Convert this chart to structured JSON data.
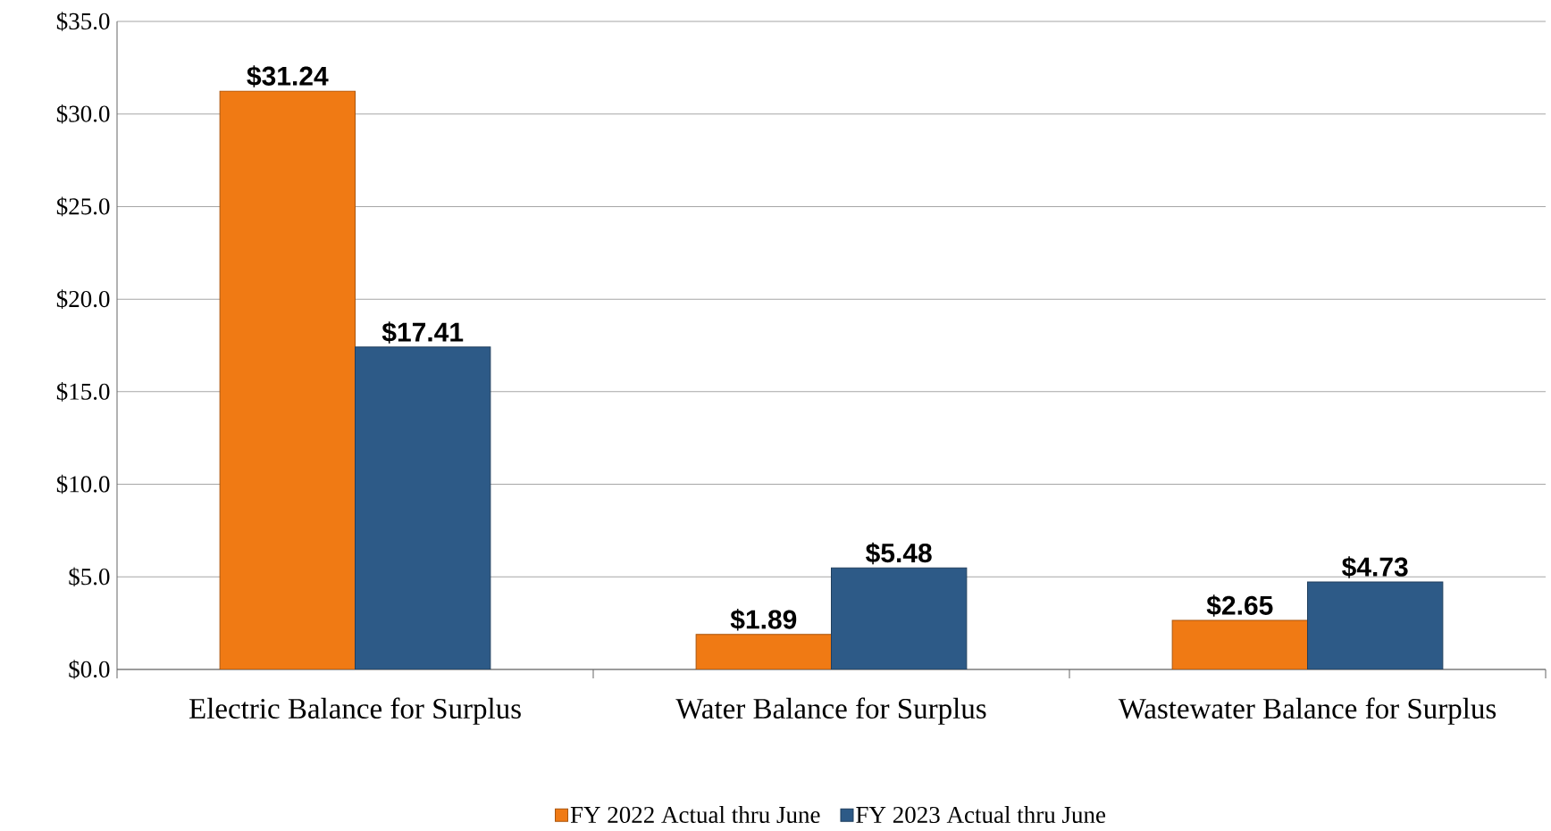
{
  "chart_data": {
    "type": "bar",
    "categories": [
      "Electric Balance for Surplus",
      "Water Balance for Surplus",
      "Wastewater Balance for Surplus"
    ],
    "series": [
      {
        "name": "FY 2022 Actual thru June",
        "color": "#f07a14",
        "values": [
          31.24,
          1.89,
          2.65
        ],
        "value_labels": [
          "$31.24",
          "$1.89",
          "$2.65"
        ]
      },
      {
        "name": "FY 2023 Actual thru June",
        "color": "#2d5a87",
        "values": [
          17.41,
          5.48,
          4.73
        ],
        "value_labels": [
          "$17.41",
          "$5.48",
          "$4.73"
        ]
      }
    ],
    "ylim": [
      0,
      35
    ],
    "yticks": [
      {
        "value": 0,
        "label": "$0.0"
      },
      {
        "value": 5,
        "label": "$5.0"
      },
      {
        "value": 10,
        "label": "$10.0"
      },
      {
        "value": 15,
        "label": "$15.0"
      },
      {
        "value": 20,
        "label": "$20.0"
      },
      {
        "value": 25,
        "label": "$25.0"
      },
      {
        "value": 30,
        "label": "$30.0"
      },
      {
        "value": 35,
        "label": "$35.0"
      }
    ],
    "grid": "y",
    "legend": "bottom"
  }
}
